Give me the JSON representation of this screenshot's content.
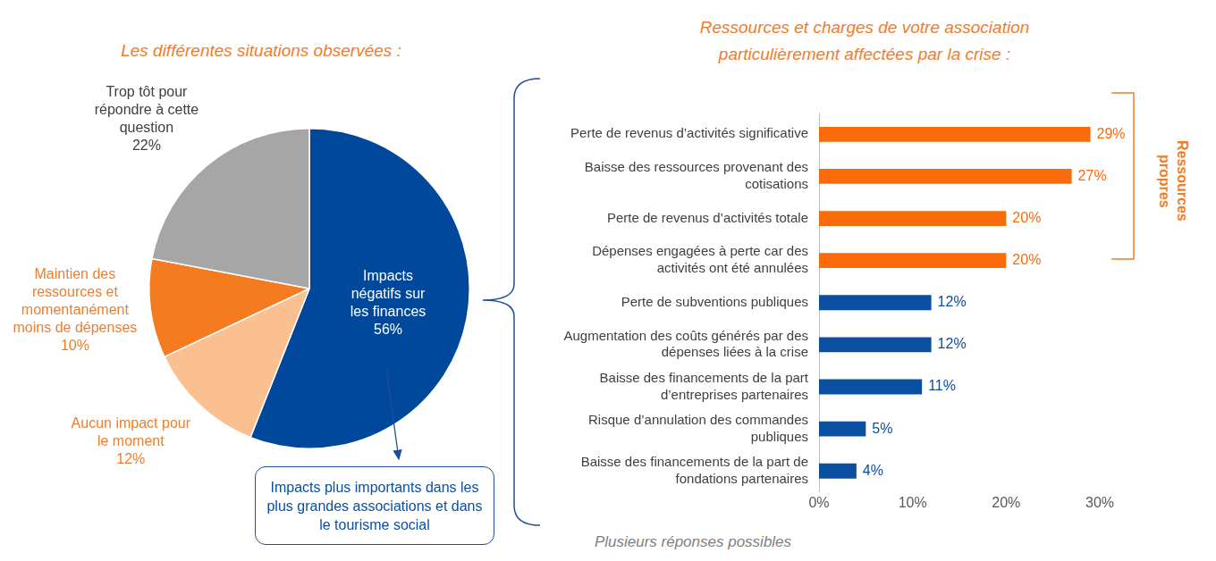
{
  "chart_data": [
    {
      "type": "pie",
      "title": "Les différentes situations observées :",
      "categories": [
        "Impacts négatifs sur les finances",
        "Aucun impact pour le moment",
        "Maintien des ressources et momentanément moins de dépenses",
        "Trop tôt pour répondre à cette question"
      ],
      "values": [
        56,
        12,
        10,
        22
      ],
      "value_labels": [
        "56%",
        "12%",
        "10%",
        "22%"
      ],
      "colors": [
        "#00489C",
        "#FAC090",
        "#F47B20",
        "#A6A6A6"
      ],
      "data_labels": true,
      "annotations": [
        "Impacts plus importants dans les plus grandes associations et dans le tourisme social"
      ]
    },
    {
      "type": "bar",
      "orientation": "horizontal",
      "title": "Ressources et charges de votre association particulièrement affectées par la crise :",
      "categories": [
        "Perte de revenus d’activités significative",
        "Baisse des ressources provenant des cotisations",
        "Perte de revenus d’activités totale",
        "Dépenses engagées à perte car des activités ont été annulées",
        "Perte de subventions publiques",
        "Augmentation des coûts générés par des dépenses liées à la crise",
        "Baisse des financements de la part d’entreprises partenaires",
        "Risque d’annulation des commandes publiques",
        "Baisse des financements de la part de fondations partenaires"
      ],
      "values": [
        29,
        27,
        20,
        20,
        12,
        12,
        11,
        5,
        4
      ],
      "value_labels": [
        "29%",
        "27%",
        "20%",
        "20%",
        "12%",
        "12%",
        "11%",
        "5%",
        "4%"
      ],
      "colors": [
        "#F96B0B",
        "#F96B0B",
        "#F96B0B",
        "#F96B0B",
        "#0B4FA0",
        "#0B4FA0",
        "#0B4FA0",
        "#0B4FA0",
        "#0B4FA0"
      ],
      "xlim": [
        0,
        30
      ],
      "xticks": [
        {
          "value": 0,
          "label": "0%"
        },
        {
          "value": 10,
          "label": "10%"
        },
        {
          "value": 20,
          "label": "20%"
        },
        {
          "value": 30,
          "label": "30%"
        }
      ],
      "grid": false,
      "data_labels": true,
      "annotations": [
        "Ressources propres",
        "Plusieurs réponses possibles"
      ]
    }
  ]
}
